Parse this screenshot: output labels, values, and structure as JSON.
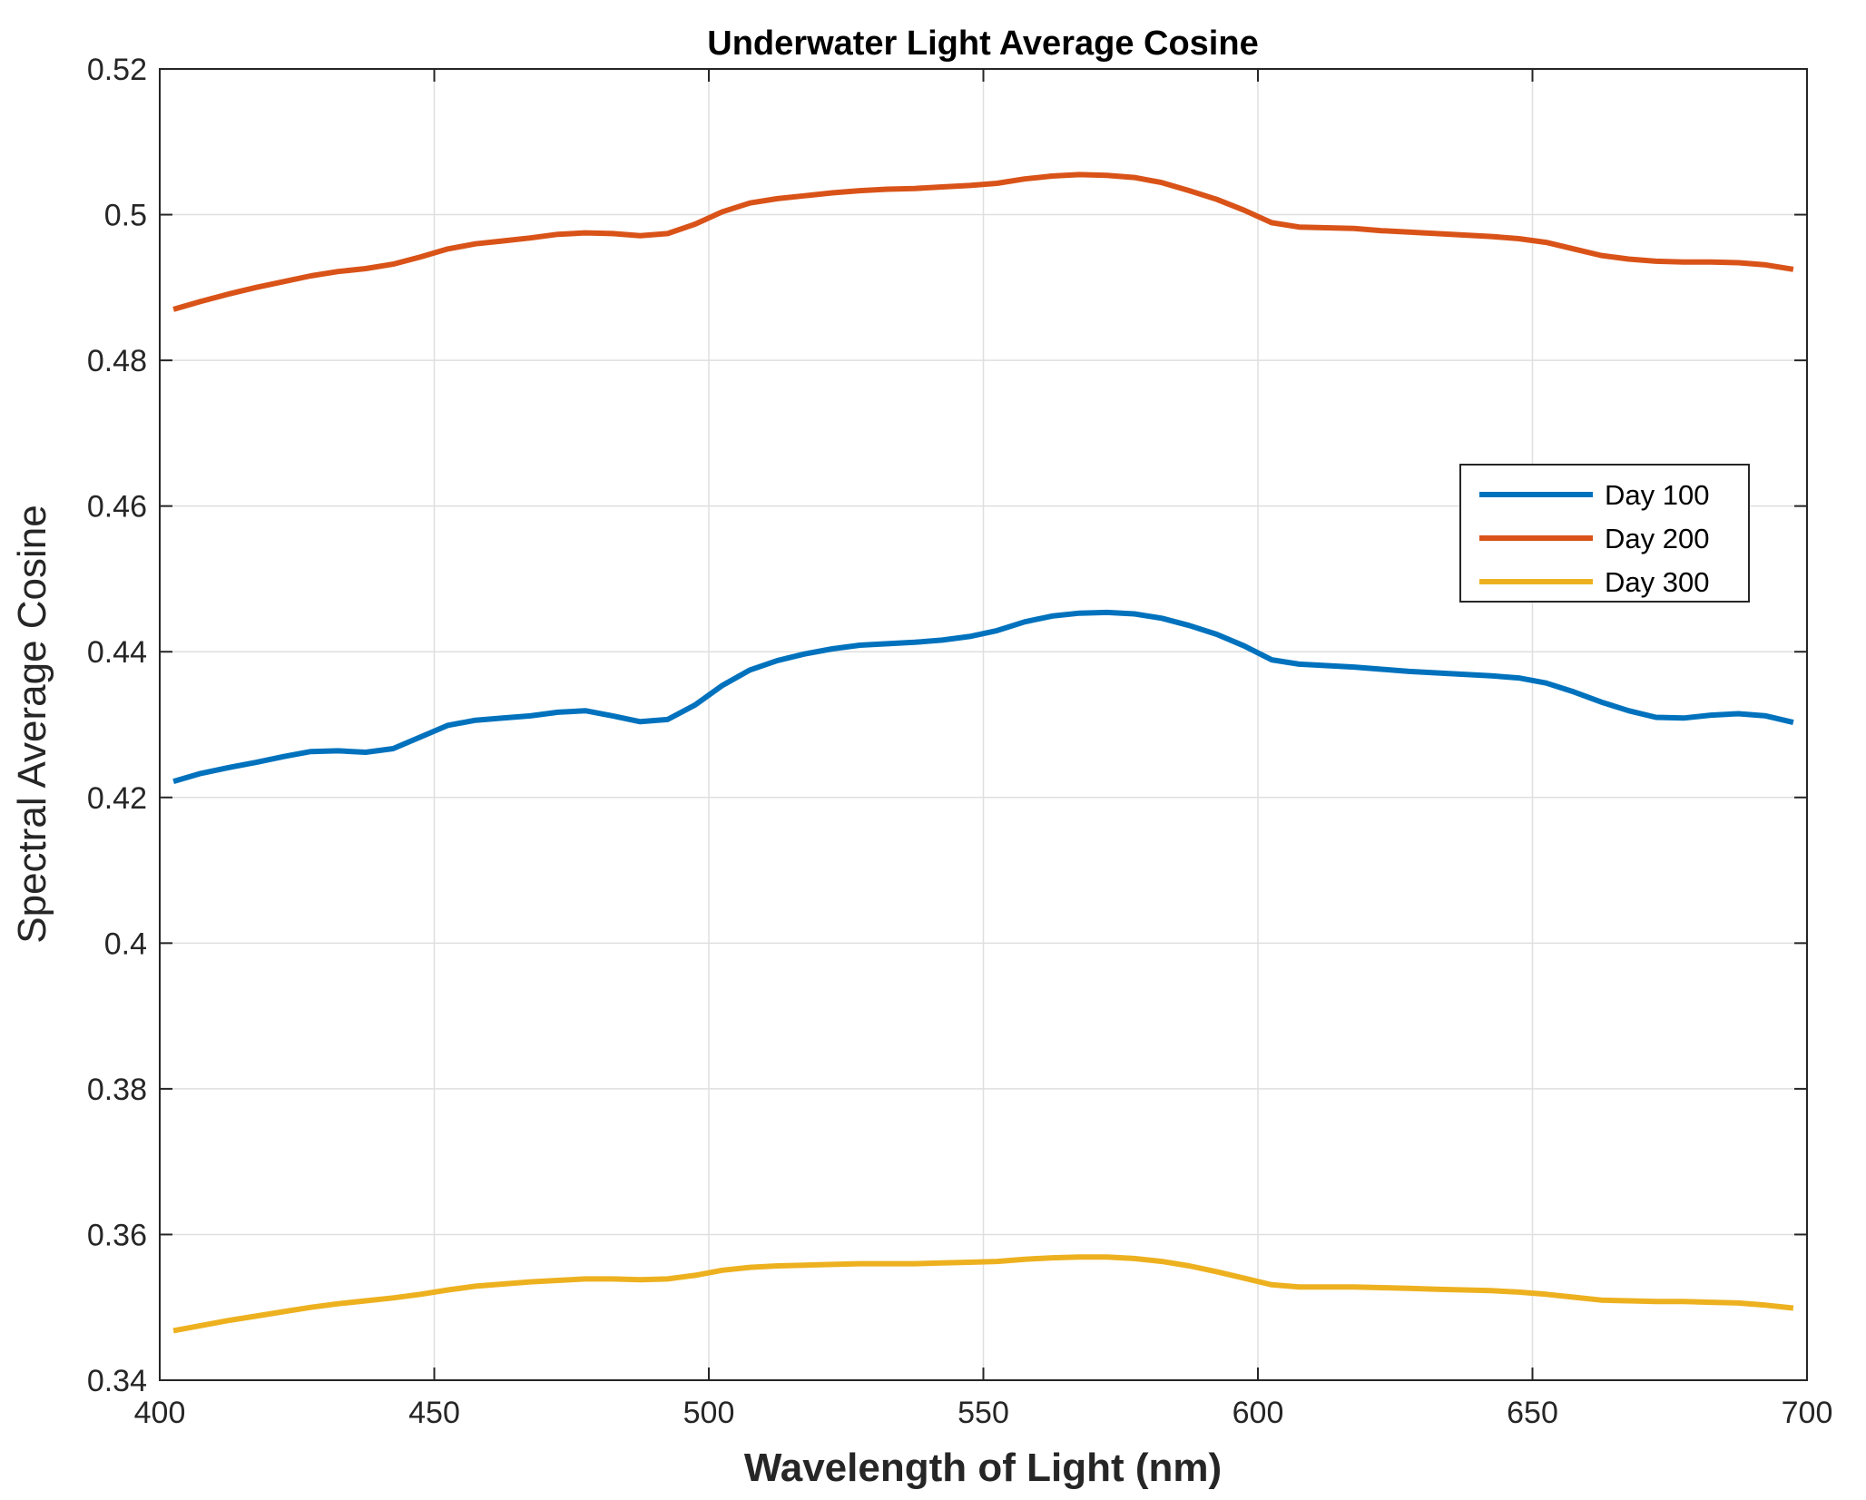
{
  "chart_data": {
    "type": "line",
    "title": "Underwater Light Average Cosine",
    "xlabel": "Wavelength of Light (nm)",
    "ylabel": "Spectral Average Cosine",
    "xlim": [
      400,
      700
    ],
    "ylim": [
      0.34,
      0.52
    ],
    "xticks": [
      400,
      450,
      500,
      550,
      600,
      650,
      700
    ],
    "xtick_labels": [
      "400",
      "450",
      "500",
      "550",
      "600",
      "650",
      "700"
    ],
    "yticks": [
      0.34,
      0.36,
      0.38,
      0.4,
      0.42,
      0.44,
      0.46,
      0.48,
      0.5,
      0.52
    ],
    "ytick_labels": [
      "0.34",
      "0.36",
      "0.38",
      "0.4",
      "0.42",
      "0.44",
      "0.46",
      "0.48",
      "0.5",
      "0.52"
    ],
    "grid": true,
    "legend_position": "right",
    "x": [
      402.5,
      407.5,
      412.5,
      417.5,
      422.5,
      427.5,
      432.5,
      437.5,
      442.5,
      447.5,
      452.5,
      457.5,
      462.5,
      467.5,
      472.5,
      477.5,
      482.5,
      487.5,
      492.5,
      497.5,
      502.5,
      507.5,
      512.5,
      517.5,
      522.5,
      527.5,
      532.5,
      537.5,
      542.5,
      547.5,
      552.5,
      557.5,
      562.5,
      567.5,
      572.5,
      577.5,
      582.5,
      587.5,
      592.5,
      597.5,
      602.5,
      607.5,
      612.5,
      617.5,
      622.5,
      627.5,
      632.5,
      637.5,
      642.5,
      647.5,
      652.5,
      657.5,
      662.5,
      667.5,
      672.5,
      677.5,
      682.5,
      687.5,
      692.5,
      697.5
    ],
    "series": [
      {
        "name": "Day 100",
        "color": "#0072BD",
        "values": [
          0.4222,
          0.4233,
          0.4241,
          0.4248,
          0.4256,
          0.4263,
          0.4264,
          0.4262,
          0.4267,
          0.4283,
          0.4299,
          0.4306,
          0.4309,
          0.4312,
          0.4317,
          0.4319,
          0.4312,
          0.4304,
          0.4307,
          0.4327,
          0.4354,
          0.4375,
          0.4388,
          0.4397,
          0.4404,
          0.4409,
          0.4411,
          0.4413,
          0.4416,
          0.4421,
          0.4429,
          0.4441,
          0.4449,
          0.4453,
          0.4454,
          0.4452,
          0.4446,
          0.4436,
          0.4424,
          0.4408,
          0.4389,
          0.4383,
          0.4381,
          0.4379,
          0.4376,
          0.4373,
          0.4371,
          0.4369,
          0.4367,
          0.4364,
          0.4357,
          0.4345,
          0.4331,
          0.4319,
          0.431,
          0.4309,
          0.4313,
          0.4315,
          0.4312,
          0.4303
        ]
      },
      {
        "name": "Day 200",
        "color": "#D95319",
        "values": [
          0.487,
          0.4881,
          0.4891,
          0.49,
          0.4908,
          0.4916,
          0.4922,
          0.4926,
          0.4932,
          0.4942,
          0.4953,
          0.496,
          0.4964,
          0.4968,
          0.4973,
          0.4975,
          0.4974,
          0.4971,
          0.4974,
          0.4987,
          0.5004,
          0.5016,
          0.5022,
          0.5026,
          0.503,
          0.5033,
          0.5035,
          0.5036,
          0.5038,
          0.504,
          0.5043,
          0.5049,
          0.5053,
          0.5055,
          0.5054,
          0.5051,
          0.5044,
          0.5033,
          0.5021,
          0.5006,
          0.4989,
          0.4983,
          0.4982,
          0.4981,
          0.4978,
          0.4976,
          0.4974,
          0.4972,
          0.497,
          0.4967,
          0.4962,
          0.4953,
          0.4944,
          0.4939,
          0.4936,
          0.4935,
          0.4935,
          0.4934,
          0.4931,
          0.4925
        ]
      },
      {
        "name": "Day 300",
        "color": "#EDB120",
        "values": [
          0.3468,
          0.3475,
          0.3482,
          0.3488,
          0.3494,
          0.35,
          0.3505,
          0.3509,
          0.3513,
          0.3518,
          0.3524,
          0.3529,
          0.3532,
          0.3535,
          0.3537,
          0.3539,
          0.3539,
          0.3538,
          0.3539,
          0.3544,
          0.3551,
          0.3555,
          0.3557,
          0.3558,
          0.3559,
          0.356,
          0.356,
          0.356,
          0.3561,
          0.3562,
          0.3563,
          0.3566,
          0.3568,
          0.3569,
          0.3569,
          0.3567,
          0.3563,
          0.3557,
          0.3549,
          0.354,
          0.3531,
          0.3528,
          0.3528,
          0.3528,
          0.3527,
          0.3526,
          0.3525,
          0.3524,
          0.3523,
          0.3521,
          0.3518,
          0.3514,
          0.351,
          0.3509,
          0.3508,
          0.3508,
          0.3507,
          0.3506,
          0.3503,
          0.3499
        ]
      }
    ]
  }
}
